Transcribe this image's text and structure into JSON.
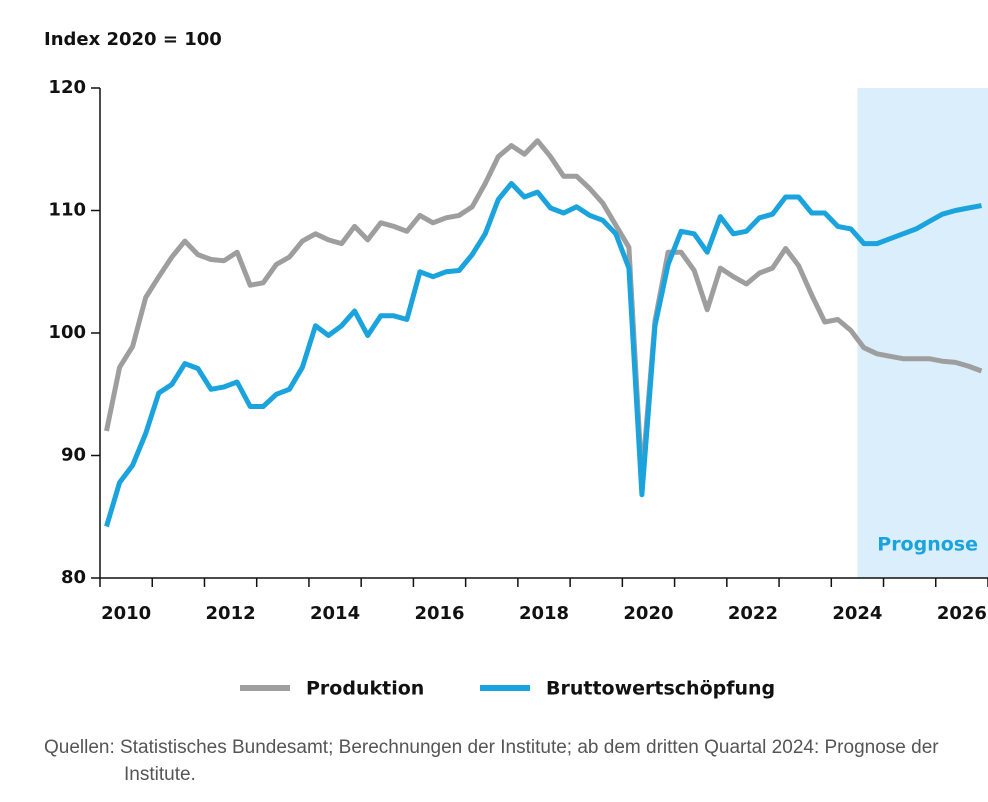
{
  "chart_data": {
    "type": "line",
    "y_axis_label": "Index 2020 = 100",
    "source": "Quellen: Statistisches Bundesamt; Berechnungen der Institute; ab dem dritten Quartal 2024: Prognose der Institute.",
    "forecast": {
      "from": 2024.5,
      "label": "Prognose",
      "color": "#dbeefb",
      "label_color": "#1aa3dc"
    },
    "xlim": [
      2010,
      2027
    ],
    "xticks": [
      2010,
      2011,
      2012,
      2013,
      2014,
      2015,
      2016,
      2017,
      2018,
      2019,
      2020,
      2021,
      2022,
      2023,
      2024,
      2025,
      2026,
      2027
    ],
    "xtick_labels": [
      {
        "value": 2010.5,
        "label": "2010"
      },
      {
        "value": 2012.5,
        "label": "2012"
      },
      {
        "value": 2014.5,
        "label": "2014"
      },
      {
        "value": 2016.5,
        "label": "2016"
      },
      {
        "value": 2018.5,
        "label": "2018"
      },
      {
        "value": 2020.5,
        "label": "2020"
      },
      {
        "value": 2022.5,
        "label": "2022"
      },
      {
        "value": 2024.5,
        "label": "2024"
      },
      {
        "value": 2026.5,
        "label": "2026"
      }
    ],
    "ylim": [
      80,
      120
    ],
    "yticks": [
      80,
      90,
      100,
      110,
      120
    ],
    "x": [
      2010.125,
      2010.375,
      2010.625,
      2010.875,
      2011.125,
      2011.375,
      2011.625,
      2011.875,
      2012.125,
      2012.375,
      2012.625,
      2012.875,
      2013.125,
      2013.375,
      2013.625,
      2013.875,
      2014.125,
      2014.375,
      2014.625,
      2014.875,
      2015.125,
      2015.375,
      2015.625,
      2015.875,
      2016.125,
      2016.375,
      2016.625,
      2016.875,
      2017.125,
      2017.375,
      2017.625,
      2017.875,
      2018.125,
      2018.375,
      2018.625,
      2018.875,
      2019.125,
      2019.375,
      2019.625,
      2019.875,
      2020.125,
      2020.375,
      2020.625,
      2020.875,
      2021.125,
      2021.375,
      2021.625,
      2021.875,
      2022.125,
      2022.375,
      2022.625,
      2022.875,
      2023.125,
      2023.375,
      2023.625,
      2023.875,
      2024.125,
      2024.375,
      2024.625,
      2024.875,
      2025.125,
      2025.375,
      2025.625,
      2025.875,
      2026.125,
      2026.375,
      2026.625,
      2026.875
    ],
    "series": [
      {
        "name": "Produktion",
        "color": "#9e9e9e",
        "values": [
          92.0,
          97.2,
          98.9,
          102.9,
          104.6,
          106.2,
          107.5,
          106.4,
          106.0,
          105.9,
          106.6,
          103.9,
          104.1,
          105.6,
          106.2,
          107.5,
          108.1,
          107.6,
          107.3,
          108.7,
          107.6,
          109.0,
          108.7,
          108.3,
          109.6,
          109.0,
          109.4,
          109.6,
          110.3,
          112.2,
          114.4,
          115.3,
          114.6,
          115.7,
          114.4,
          112.8,
          112.8,
          111.8,
          110.6,
          108.8,
          107.0,
          88.0,
          101.0,
          106.6,
          106.6,
          105.1,
          101.9,
          105.3,
          104.6,
          104.0,
          104.9,
          105.3,
          106.9,
          105.5,
          103.1,
          100.9,
          101.1,
          100.2,
          98.8,
          98.3,
          98.1,
          97.9,
          97.9,
          97.9,
          97.7,
          97.6,
          97.3,
          96.9
        ]
      },
      {
        "name": "Bruttowertschöpfung",
        "color": "#1aa3dc",
        "values": [
          84.2,
          87.8,
          89.2,
          91.8,
          95.1,
          95.8,
          97.5,
          97.1,
          95.4,
          95.6,
          96.0,
          94.0,
          94.0,
          95.0,
          95.4,
          97.2,
          100.6,
          99.8,
          100.6,
          101.8,
          99.8,
          101.4,
          101.4,
          101.1,
          105.0,
          104.6,
          105.0,
          105.1,
          106.4,
          108.1,
          110.9,
          112.2,
          111.1,
          111.5,
          110.2,
          109.8,
          110.3,
          109.6,
          109.2,
          108.1,
          105.3,
          86.8,
          100.6,
          105.6,
          108.3,
          108.1,
          106.6,
          109.5,
          108.1,
          108.3,
          109.4,
          109.7,
          111.1,
          111.1,
          109.8,
          109.8,
          108.7,
          108.5,
          107.3,
          107.3,
          107.7,
          108.1,
          108.5,
          109.1,
          109.7,
          110.0,
          110.2,
          110.4
        ]
      }
    ]
  }
}
